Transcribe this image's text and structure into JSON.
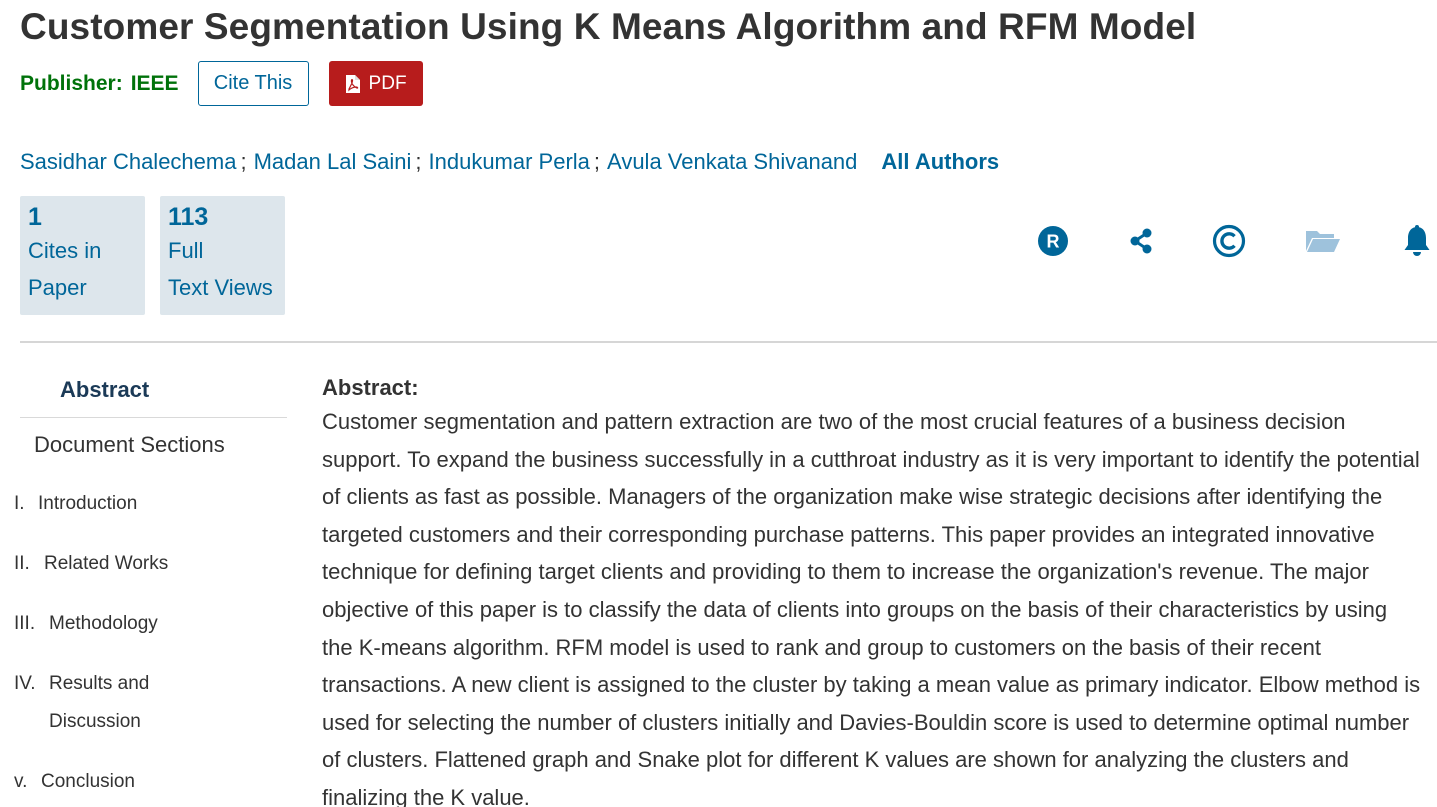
{
  "paper": {
    "title": "Customer Segmentation Using K Means Algorithm and RFM Model",
    "publisher_label": "Publisher:",
    "publisher_name": "IEEE"
  },
  "actions": {
    "cite_label": "Cite This",
    "pdf_label": "PDF"
  },
  "authors": [
    {
      "name": "Sasidhar Chalechema",
      "sep": ";"
    },
    {
      "name": "Madan Lal Saini",
      "sep": ";"
    },
    {
      "name": "Indukumar Perla",
      "sep": ";"
    },
    {
      "name": "Avula Venkata Shivanand",
      "sep": ""
    }
  ],
  "all_authors_label": "All Authors",
  "metrics": [
    {
      "value": "1",
      "line1": "Cites in",
      "line2": "Paper"
    },
    {
      "value": "113",
      "line1": "Full",
      "line2": "Text Views"
    }
  ],
  "toolbar_icons": [
    "r-badge-icon",
    "share-icon",
    "copyright-icon",
    "folder-icon",
    "bell-icon"
  ],
  "sidebar": {
    "abstract_label": "Abstract",
    "sections_heading": "Document Sections",
    "sections": [
      {
        "num": "I.",
        "title": "Introduction"
      },
      {
        "num": "II.",
        "title": "Related Works"
      },
      {
        "num": "III.",
        "title": "Methodology"
      },
      {
        "num": "IV.",
        "title": "Results and Discussion"
      },
      {
        "num": "v.",
        "title": "Conclusion"
      }
    ]
  },
  "abstract": {
    "heading": "Abstract:",
    "text": "Customer segmentation and pattern extraction are two of the most crucial features of a business decision support. To expand the business successfully in a cutthroat industry as it is very important to identify the potential of clients as fast as possible. Managers of the organization make wise strategic decisions after identifying the targeted customers and their corresponding purchase patterns. This paper provides an integrated innovative technique for defining target clients and providing to them to increase the organization's revenue. The major objective of this paper is to classify the data of clients into groups on the basis of their characteristics by using the K-means algorithm. RFM model is used to rank and group to customers on the basis of their recent transactions. A new client is assigned to the cluster by taking a mean value as primary indicator. Elbow method is used for selecting the number of clusters initially and Davies-Bouldin score is used to determine optimal number of clusters. Flattened graph and Snake plot for different K values are shown for analyzing the clusters and finalizing the K value."
  },
  "colors": {
    "link": "#006699",
    "publisher": "#00720a",
    "pdf_button": "#b71c1c",
    "metric_bg": "#dde6ec",
    "folder_icon": "#9ec2dc"
  }
}
